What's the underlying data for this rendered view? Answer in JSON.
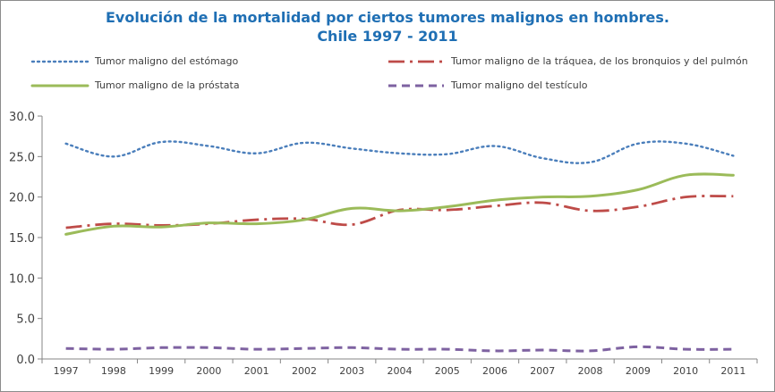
{
  "chart_data": {
    "type": "line",
    "title_line1": "Evolución de la mortalidad por ciertos tumores malignos en hombres.",
    "title_line2": "Chile 1997 - 2011",
    "xlabel": "",
    "ylabel": "",
    "x": [
      "1997",
      "1998",
      "1999",
      "2000",
      "2001",
      "2002",
      "2003",
      "2004",
      "2005",
      "2006",
      "2007",
      "2008",
      "2009",
      "2010",
      "2011"
    ],
    "ylim": [
      0,
      30
    ],
    "yticks": [
      "0.0",
      "5.0",
      "10.0",
      "15.0",
      "20.0",
      "25.0",
      "30.0"
    ],
    "ytick_values": [
      0,
      5,
      10,
      15,
      20,
      25,
      30
    ],
    "grid": false,
    "legend_placement": "top",
    "series": [
      {
        "name": "Tumor maligno del estómago",
        "color": "#4a7ebb",
        "style": "dotted",
        "values": [
          26.6,
          25.0,
          26.8,
          26.3,
          25.4,
          26.7,
          26.0,
          25.4,
          25.3,
          26.3,
          24.8,
          24.3,
          26.6,
          26.6,
          25.1
        ]
      },
      {
        "name": "Tumor maligno de la tráquea, de los bronquios y del pulmón",
        "color": "#be4b48",
        "style": "dashdot",
        "values": [
          16.2,
          16.7,
          16.5,
          16.7,
          17.2,
          17.3,
          16.6,
          18.4,
          18.4,
          18.9,
          19.3,
          18.3,
          18.8,
          20.0,
          20.1
        ]
      },
      {
        "name": "Tumor maligno de la próstata",
        "color": "#9bbb59",
        "style": "solid",
        "values": [
          15.4,
          16.4,
          16.3,
          16.8,
          16.7,
          17.2,
          18.6,
          18.3,
          18.8,
          19.6,
          20.0,
          20.1,
          20.9,
          22.7,
          22.7
        ]
      },
      {
        "name": "Tumor maligno del testículo",
        "color": "#7e62a1",
        "style": "dashed",
        "values": [
          1.3,
          1.2,
          1.4,
          1.4,
          1.2,
          1.3,
          1.4,
          1.2,
          1.2,
          1.0,
          1.1,
          1.0,
          1.5,
          1.2,
          1.2
        ]
      }
    ]
  }
}
